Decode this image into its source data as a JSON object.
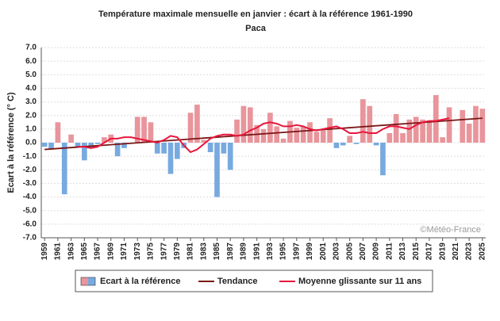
{
  "chart_data": {
    "type": "bar",
    "title": "Température maximale mensuelle en janvier : écart à la référence 1961-1990",
    "subtitle": "Paca",
    "ylabel": "Ecart à la référence (° C)",
    "annotation": "©Météo-France",
    "x": [
      1959,
      1960,
      1961,
      1962,
      1963,
      1964,
      1965,
      1966,
      1967,
      1968,
      1969,
      1970,
      1971,
      1972,
      1973,
      1974,
      1975,
      1976,
      1977,
      1978,
      1979,
      1980,
      1981,
      1982,
      1983,
      1984,
      1985,
      1986,
      1987,
      1988,
      1989,
      1990,
      1991,
      1992,
      1993,
      1994,
      1995,
      1996,
      1997,
      1998,
      1999,
      2000,
      2001,
      2002,
      2003,
      2004,
      2005,
      2006,
      2007,
      2008,
      2009,
      2010,
      2011,
      2012,
      2013,
      2014,
      2015,
      2016,
      2017,
      2018,
      2019,
      2020,
      2021,
      2022,
      2023,
      2024,
      2025
    ],
    "xlim": [
      1958.5,
      2025.5
    ],
    "xticks": [
      1959,
      1961,
      1963,
      1965,
      1967,
      1969,
      1971,
      1973,
      1975,
      1977,
      1979,
      1981,
      1983,
      1985,
      1987,
      1989,
      1991,
      1993,
      1995,
      1997,
      1999,
      2001,
      2003,
      2005,
      2007,
      2009,
      2011,
      2013,
      2015,
      2017,
      2019,
      2021,
      2023,
      2025
    ],
    "ylim": [
      -7,
      7
    ],
    "yticks": [
      {
        "value": -7,
        "label": "-7.0"
      },
      {
        "value": -6,
        "label": "-6.0"
      },
      {
        "value": -5,
        "label": "-5.0"
      },
      {
        "value": -4,
        "label": "-4.0"
      },
      {
        "value": -3,
        "label": "-3.0"
      },
      {
        "value": -2,
        "label": "-2.0"
      },
      {
        "value": -1,
        "label": "-1.0"
      },
      {
        "value": 0,
        "label": "0.0"
      },
      {
        "value": 1,
        "label": "1.0"
      },
      {
        "value": 2,
        "label": "2.0"
      },
      {
        "value": 3,
        "label": "3.0"
      },
      {
        "value": 4,
        "label": "4.0"
      },
      {
        "value": 5,
        "label": "5.0"
      },
      {
        "value": 6,
        "label": "6.0"
      },
      {
        "value": 7,
        "label": "7.0"
      }
    ],
    "grid": true,
    "series": [
      {
        "name": "Ecart à la référence",
        "type": "bar",
        "positive_color": "#e8959b",
        "negative_color": "#78aae0",
        "values": [
          -0.3,
          -0.5,
          1.5,
          -3.8,
          0.6,
          -0.3,
          -1.3,
          -0.4,
          -0.1,
          0.4,
          0.6,
          -1.0,
          -0.4,
          0.0,
          1.9,
          1.9,
          1.5,
          -0.8,
          -0.8,
          -2.3,
          -1.2,
          -0.4,
          2.2,
          2.8,
          0.2,
          -0.7,
          -4.0,
          -0.8,
          -2.0,
          1.7,
          2.7,
          2.6,
          1.3,
          1.0,
          2.2,
          1.2,
          0.3,
          1.6,
          1.1,
          1.2,
          1.5,
          0.8,
          0.9,
          1.8,
          -0.4,
          -0.2,
          0.5,
          -0.1,
          3.2,
          2.7,
          -0.2,
          -2.4,
          0.7,
          2.1,
          0.7,
          1.7,
          1.9,
          1.7,
          1.5,
          3.5,
          0.4,
          2.6,
          0.0,
          2.4,
          1.4,
          2.7,
          2.5
        ]
      },
      {
        "name": "Tendance",
        "type": "line",
        "color": "#7a1616",
        "x": [
          1959,
          2025
        ],
        "values": [
          -0.5,
          1.8
        ]
      },
      {
        "name": "Moyenne glissante sur 11 ans",
        "type": "line",
        "color": "#e8163c",
        "values": [
          null,
          null,
          null,
          null,
          null,
          -0.3,
          -0.3,
          -0.4,
          -0.3,
          0.0,
          0.3,
          0.3,
          0.4,
          0.4,
          0.3,
          0.2,
          0.1,
          0.0,
          0.2,
          0.5,
          0.4,
          -0.2,
          -0.7,
          -0.5,
          -0.1,
          0.3,
          0.5,
          0.6,
          0.6,
          0.5,
          0.6,
          0.9,
          1.1,
          1.4,
          1.5,
          1.4,
          1.2,
          1.2,
          1.3,
          1.2,
          1.0,
          0.9,
          1.0,
          1.1,
          1.2,
          1.0,
          0.7,
          0.7,
          0.8,
          0.7,
          0.7,
          1.0,
          1.2,
          1.2,
          1.1,
          1.0,
          1.3,
          1.5,
          1.6,
          1.6,
          1.7,
          1.8,
          null,
          null,
          null,
          null,
          null
        ]
      }
    ]
  }
}
